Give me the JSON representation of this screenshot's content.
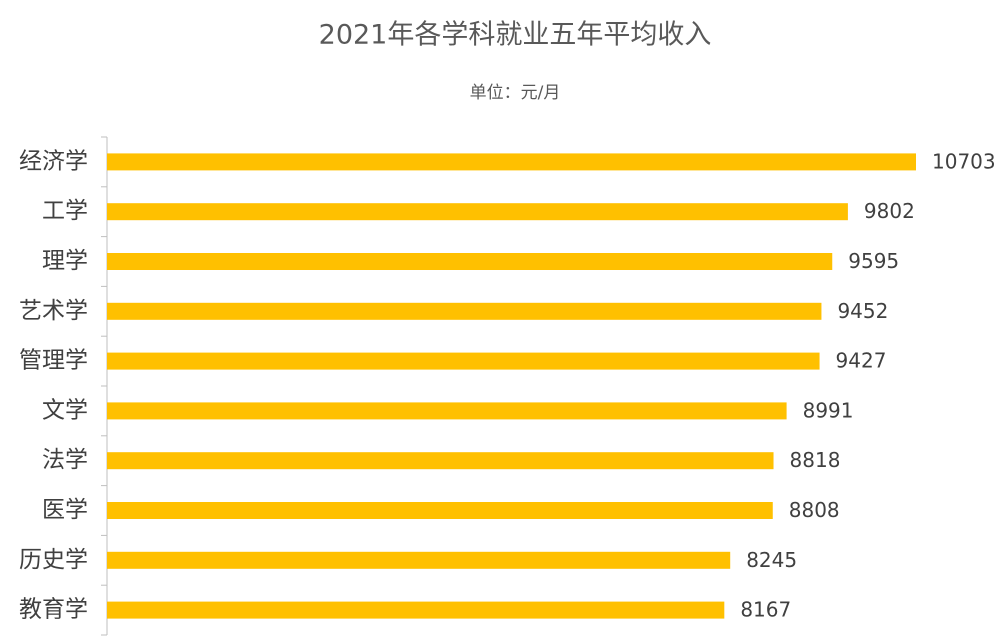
{
  "chart_data": {
    "type": "bar",
    "orientation": "horizontal",
    "title": "2021年各学科就业五年平均收入",
    "subtitle": "单位：元/月",
    "categories": [
      "经济学",
      "工学",
      "理学",
      "艺术学",
      "管理学",
      "文学",
      "法学",
      "医学",
      "历史学",
      "教育学"
    ],
    "values": [
      10703,
      9802,
      9595,
      9452,
      9427,
      8991,
      8818,
      8808,
      8245,
      8167
    ],
    "color": "#ffc000"
  }
}
